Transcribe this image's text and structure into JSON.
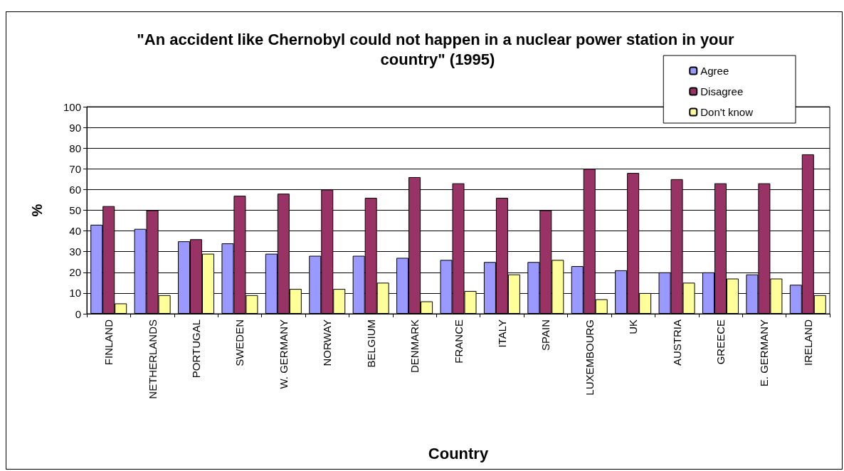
{
  "chart_data": {
    "type": "bar",
    "title": "\"An accident like Chernobyl could not happen in a nuclear power station in your country\" (1995)",
    "xlabel": "Country",
    "ylabel": "%",
    "categories": [
      "FINLAND",
      "NETHERLANDS",
      "PORTUGAL",
      "SWEDEN",
      "W. GERMANY",
      "NORWAY",
      "BELGIUM",
      "DENMARK",
      "FRANCE",
      "ITALY",
      "SPAIN",
      "LUXEMBOURG",
      "UK",
      "AUSTRIA",
      "GREECE",
      "E. GERMANY",
      "IRELAND"
    ],
    "series": [
      {
        "name": "Agree",
        "color": "#9999ff",
        "values": [
          43,
          41,
          35,
          34,
          29,
          28,
          28,
          27,
          26,
          25,
          25,
          23,
          21,
          20,
          20,
          19,
          14
        ]
      },
      {
        "name": "Disagree",
        "color": "#993366",
        "values": [
          52,
          50,
          36,
          57,
          58,
          60,
          56,
          66,
          63,
          56,
          50,
          70,
          68,
          65,
          63,
          63,
          77
        ]
      },
      {
        "name": "Don't know",
        "color": "#ffff99",
        "values": [
          5,
          9,
          29,
          9,
          12,
          12,
          15,
          6,
          11,
          19,
          26,
          7,
          10,
          15,
          17,
          17,
          9
        ]
      }
    ],
    "ylim": [
      0,
      100
    ],
    "yticks": [
      0,
      10,
      20,
      30,
      40,
      50,
      60,
      70,
      80,
      90,
      100
    ],
    "grid": "y",
    "legend": "top right"
  }
}
